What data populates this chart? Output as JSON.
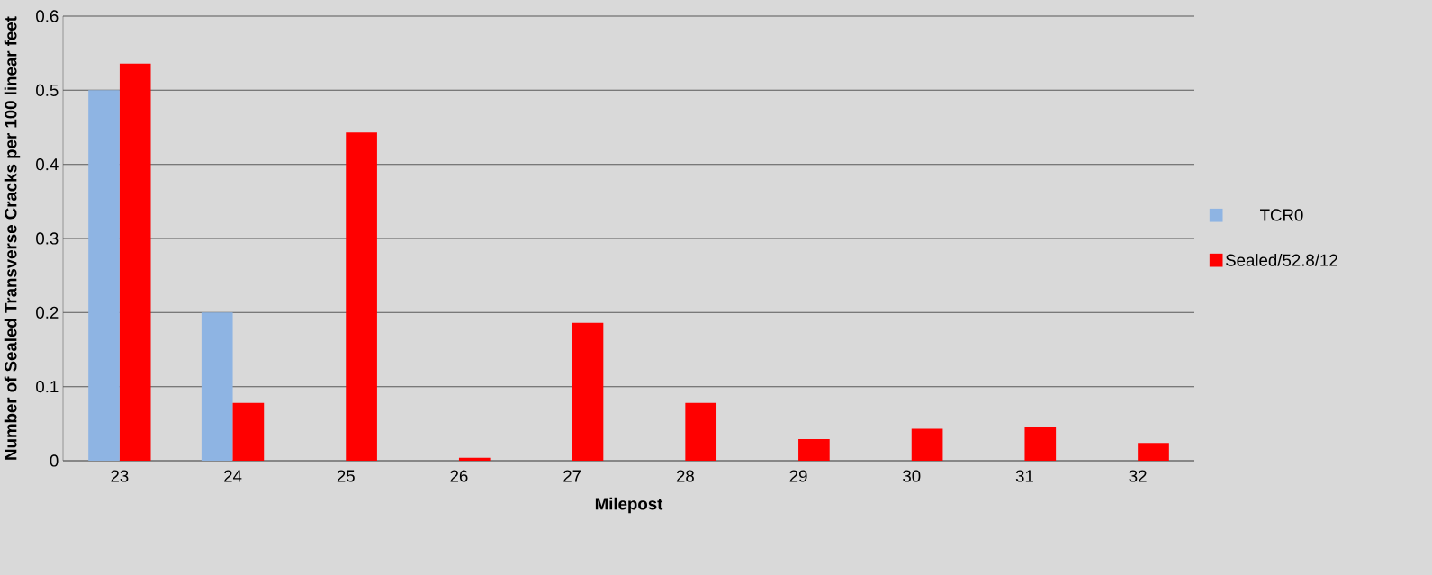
{
  "chart_data": {
    "type": "bar",
    "xlabel": "Milepost",
    "ylabel": "Number of Sealed Transverse Cracks per 100 linear feet",
    "categories": [
      "23",
      "24",
      "25",
      "26",
      "27",
      "28",
      "29",
      "30",
      "31",
      "32"
    ],
    "series": [
      {
        "name": "TCR0",
        "color": "#8eb4e3",
        "values": [
          0.5,
          0.2,
          null,
          null,
          null,
          null,
          null,
          null,
          null,
          null
        ]
      },
      {
        "name": "Sealed/52.8/12",
        "color": "#ff0000",
        "values": [
          0.536,
          0.078,
          0.443,
          0.004,
          0.186,
          0.078,
          0.029,
          0.043,
          0.046,
          0.024
        ]
      }
    ],
    "ylim": [
      0,
      0.6
    ],
    "yticks": [
      0,
      0.1,
      0.2,
      0.3,
      0.4,
      0.5,
      0.6
    ],
    "grid": "y",
    "legend": "right"
  }
}
